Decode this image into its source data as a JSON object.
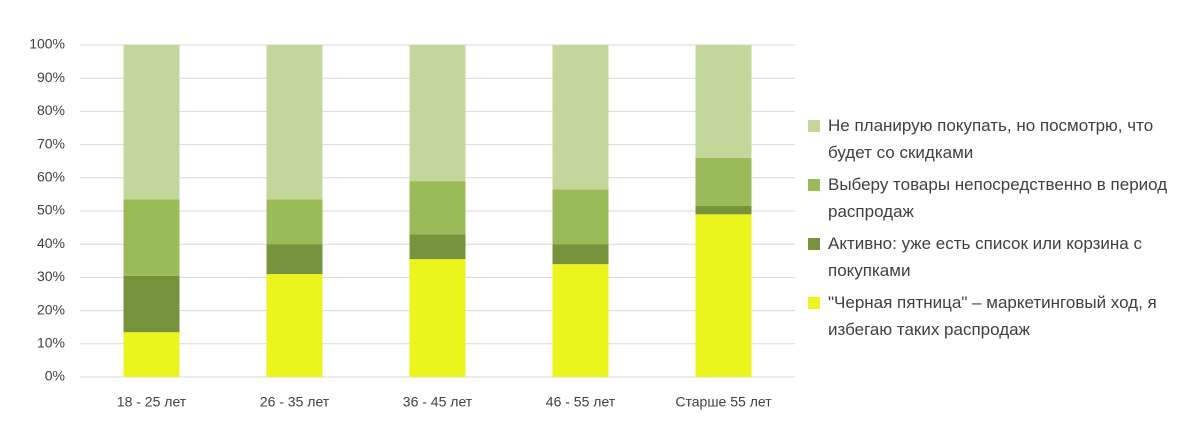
{
  "chart_data": {
    "type": "stacked_bar",
    "categories": [
      "18 - 25 лет",
      "26 - 35 лет",
      "36 - 45 лет",
      "46 - 55 лет",
      "Старше 55 лет"
    ],
    "series": [
      {
        "name": "\"Черная пятница\" – маркетинговый ход, я избегаю таких распродаж",
        "color": "#ecf41e",
        "values": [
          13.5,
          31,
          35.5,
          34,
          49
        ]
      },
      {
        "name": "Активно: уже есть список или корзина с покупками",
        "color": "#77933c",
        "values": [
          17,
          9,
          7.5,
          6,
          2.5
        ]
      },
      {
        "name": "Выберу товары непосредственно в период распродаж",
        "color": "#9bbb59",
        "values": [
          23,
          13.5,
          16,
          16.5,
          14.5
        ]
      },
      {
        "name": "Не планирую покупать, но посмотрю, что будет со скидками",
        "color": "#c4d79b",
        "values": [
          46.5,
          46.5,
          41,
          43.5,
          34
        ]
      }
    ],
    "ylim": [
      0,
      100
    ],
    "yticks": [
      {
        "value": 0,
        "label": "0%"
      },
      {
        "value": 10,
        "label": "10%"
      },
      {
        "value": 20,
        "label": "20%"
      },
      {
        "value": 30,
        "label": "30%"
      },
      {
        "value": 40,
        "label": "40%"
      },
      {
        "value": 50,
        "label": "50%"
      },
      {
        "value": 60,
        "label": "60%"
      },
      {
        "value": 70,
        "label": "70%"
      },
      {
        "value": 80,
        "label": "80%"
      },
      {
        "value": 90,
        "label": "90%"
      },
      {
        "value": 100,
        "label": "100%"
      }
    ],
    "grid": true,
    "legend": "right"
  }
}
